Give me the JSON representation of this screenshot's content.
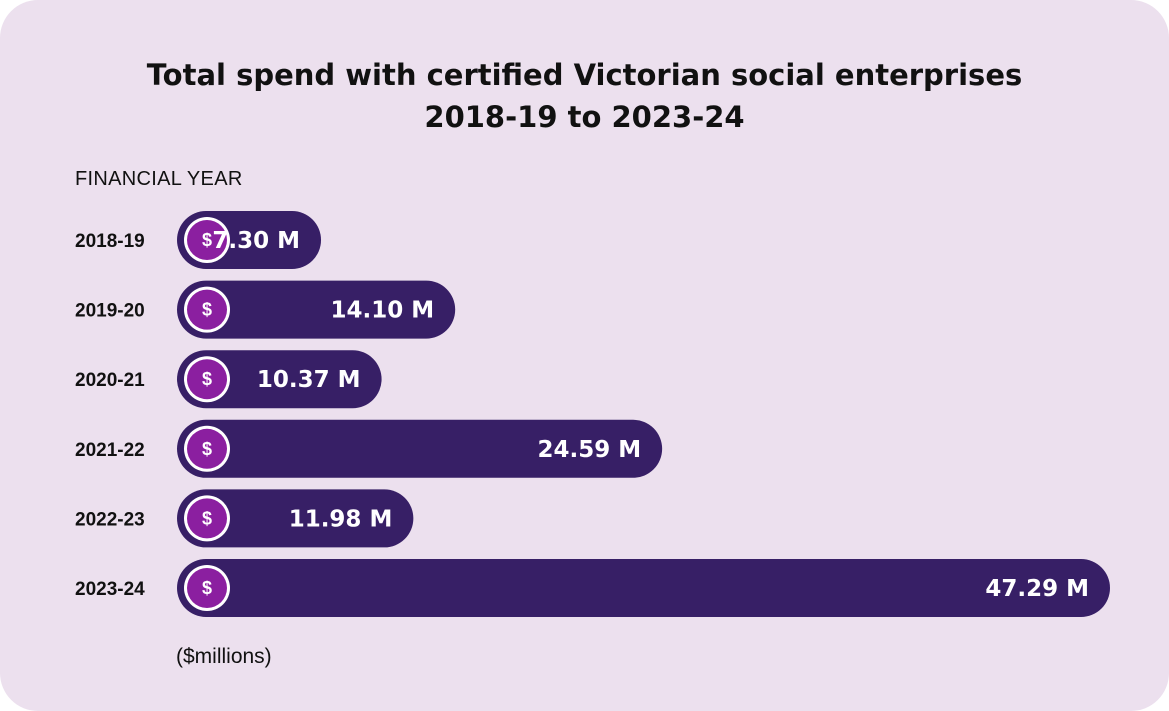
{
  "chart_data": {
    "type": "bar",
    "orientation": "horizontal",
    "title": "Total spend with certified Victorian social enterprises",
    "subtitle": "2018-19 to 2023-24",
    "ylabel": "FINANCIAL YEAR",
    "xlabel": "($millions)",
    "categories": [
      "2018-19",
      "2019-20",
      "2020-21",
      "2021-22",
      "2022-23",
      "2023-24"
    ],
    "values": [
      7.3,
      14.1,
      10.37,
      24.59,
      11.98,
      47.29
    ],
    "data_labels": [
      "7.30 M",
      "14.10 M",
      "10.37 M",
      "24.59 M",
      "11.98 M",
      "47.29 M"
    ],
    "xlim": [
      0,
      47.29
    ],
    "grid": false,
    "legend": "none",
    "bar_icon": "dollar-coin-icon",
    "bar_icon_text": "$"
  },
  "colors": {
    "background": "#ece0ee",
    "bar": "#371f66",
    "coin": "#8b1fa0",
    "coin_ring": "#ffffff"
  }
}
